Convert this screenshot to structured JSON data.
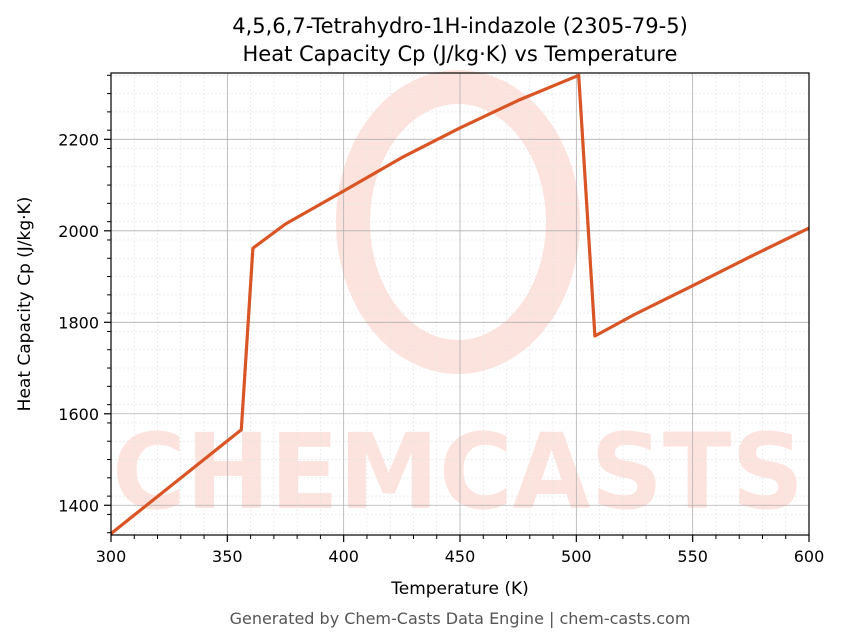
{
  "chart_data": {
    "type": "line",
    "title_line1": "4,5,6,7-Tetrahydro-1H-indazole (2305-79-5)",
    "title_line2": "Heat Capacity Cp (J/kg·K) vs Temperature",
    "xlabel": "Temperature (K)",
    "ylabel": "Heat Capacity Cp (J/kg·K)",
    "xlim": [
      300,
      600
    ],
    "ylim": [
      1335,
      2345
    ],
    "xticks": [
      300,
      350,
      400,
      450,
      500,
      550,
      600
    ],
    "yticks": [
      1400,
      1600,
      1800,
      2000,
      2200
    ],
    "grid": true,
    "series": [
      {
        "x": [
          300,
          356,
          361,
          375,
          400,
          425,
          450,
          475,
          501,
          508,
          525,
          550,
          575,
          600
        ],
        "y": [
          1338,
          1565,
          1962,
          2015,
          2087,
          2160,
          2225,
          2285,
          2340,
          1770,
          1817,
          1880,
          1944,
          2006
        ]
      }
    ]
  },
  "colors": {
    "line": "#d95525",
    "grid_major": "#b0b0b0",
    "grid_minor": "#e4e4e4",
    "watermark": "#fde3dd"
  },
  "watermark": {
    "text": "CHEMCASTS"
  },
  "footer": {
    "text": "Generated by Chem-Casts Data Engine | chem-casts.com"
  }
}
